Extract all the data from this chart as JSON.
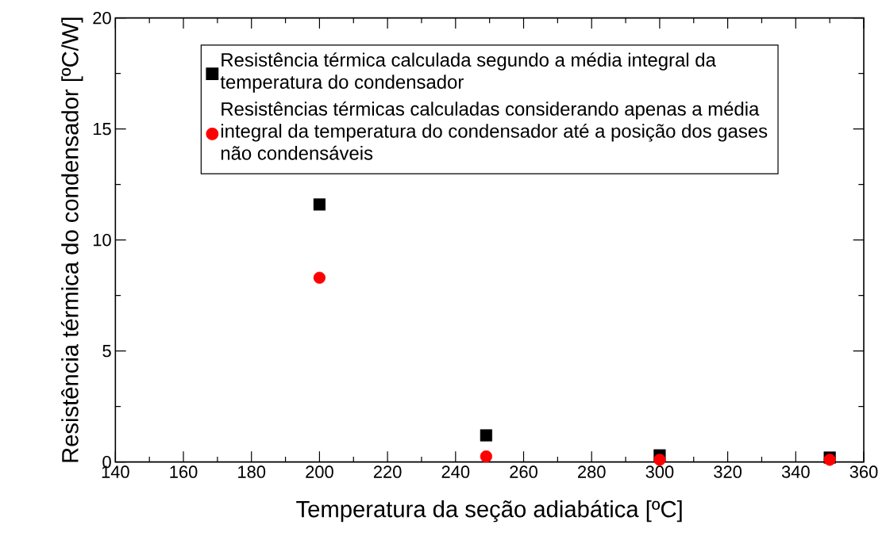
{
  "chart_data": {
    "type": "scatter",
    "xlabel": "Temperatura da seção adiabática [ºC]",
    "ylabel": "Resistência térmica do condensador [ºC/W]",
    "xlim": [
      140,
      360
    ],
    "xticks": [
      140,
      160,
      180,
      200,
      220,
      240,
      260,
      280,
      300,
      320,
      340,
      360
    ],
    "ylim": [
      0,
      20
    ],
    "yticks": [
      0,
      5,
      10,
      15,
      20
    ],
    "grid": false,
    "legend": "top",
    "series": [
      {
        "name": "Resistência térmica calculada segundo a média integral da temperatura do condensador",
        "color": "#000000",
        "marker": "square",
        "x": [
          200,
          249,
          300,
          350
        ],
        "values": [
          11.6,
          1.2,
          0.3,
          0.2
        ]
      },
      {
        "name": "Resistências térmicas calculadas considerando apenas a média integral da temperatura do condensador até a posição dos gases não condensáveis",
        "color": "#ff0000",
        "marker": "circle",
        "x": [
          200,
          249,
          300,
          350
        ],
        "values": [
          8.3,
          0.25,
          0.1,
          0.1
        ]
      }
    ]
  }
}
